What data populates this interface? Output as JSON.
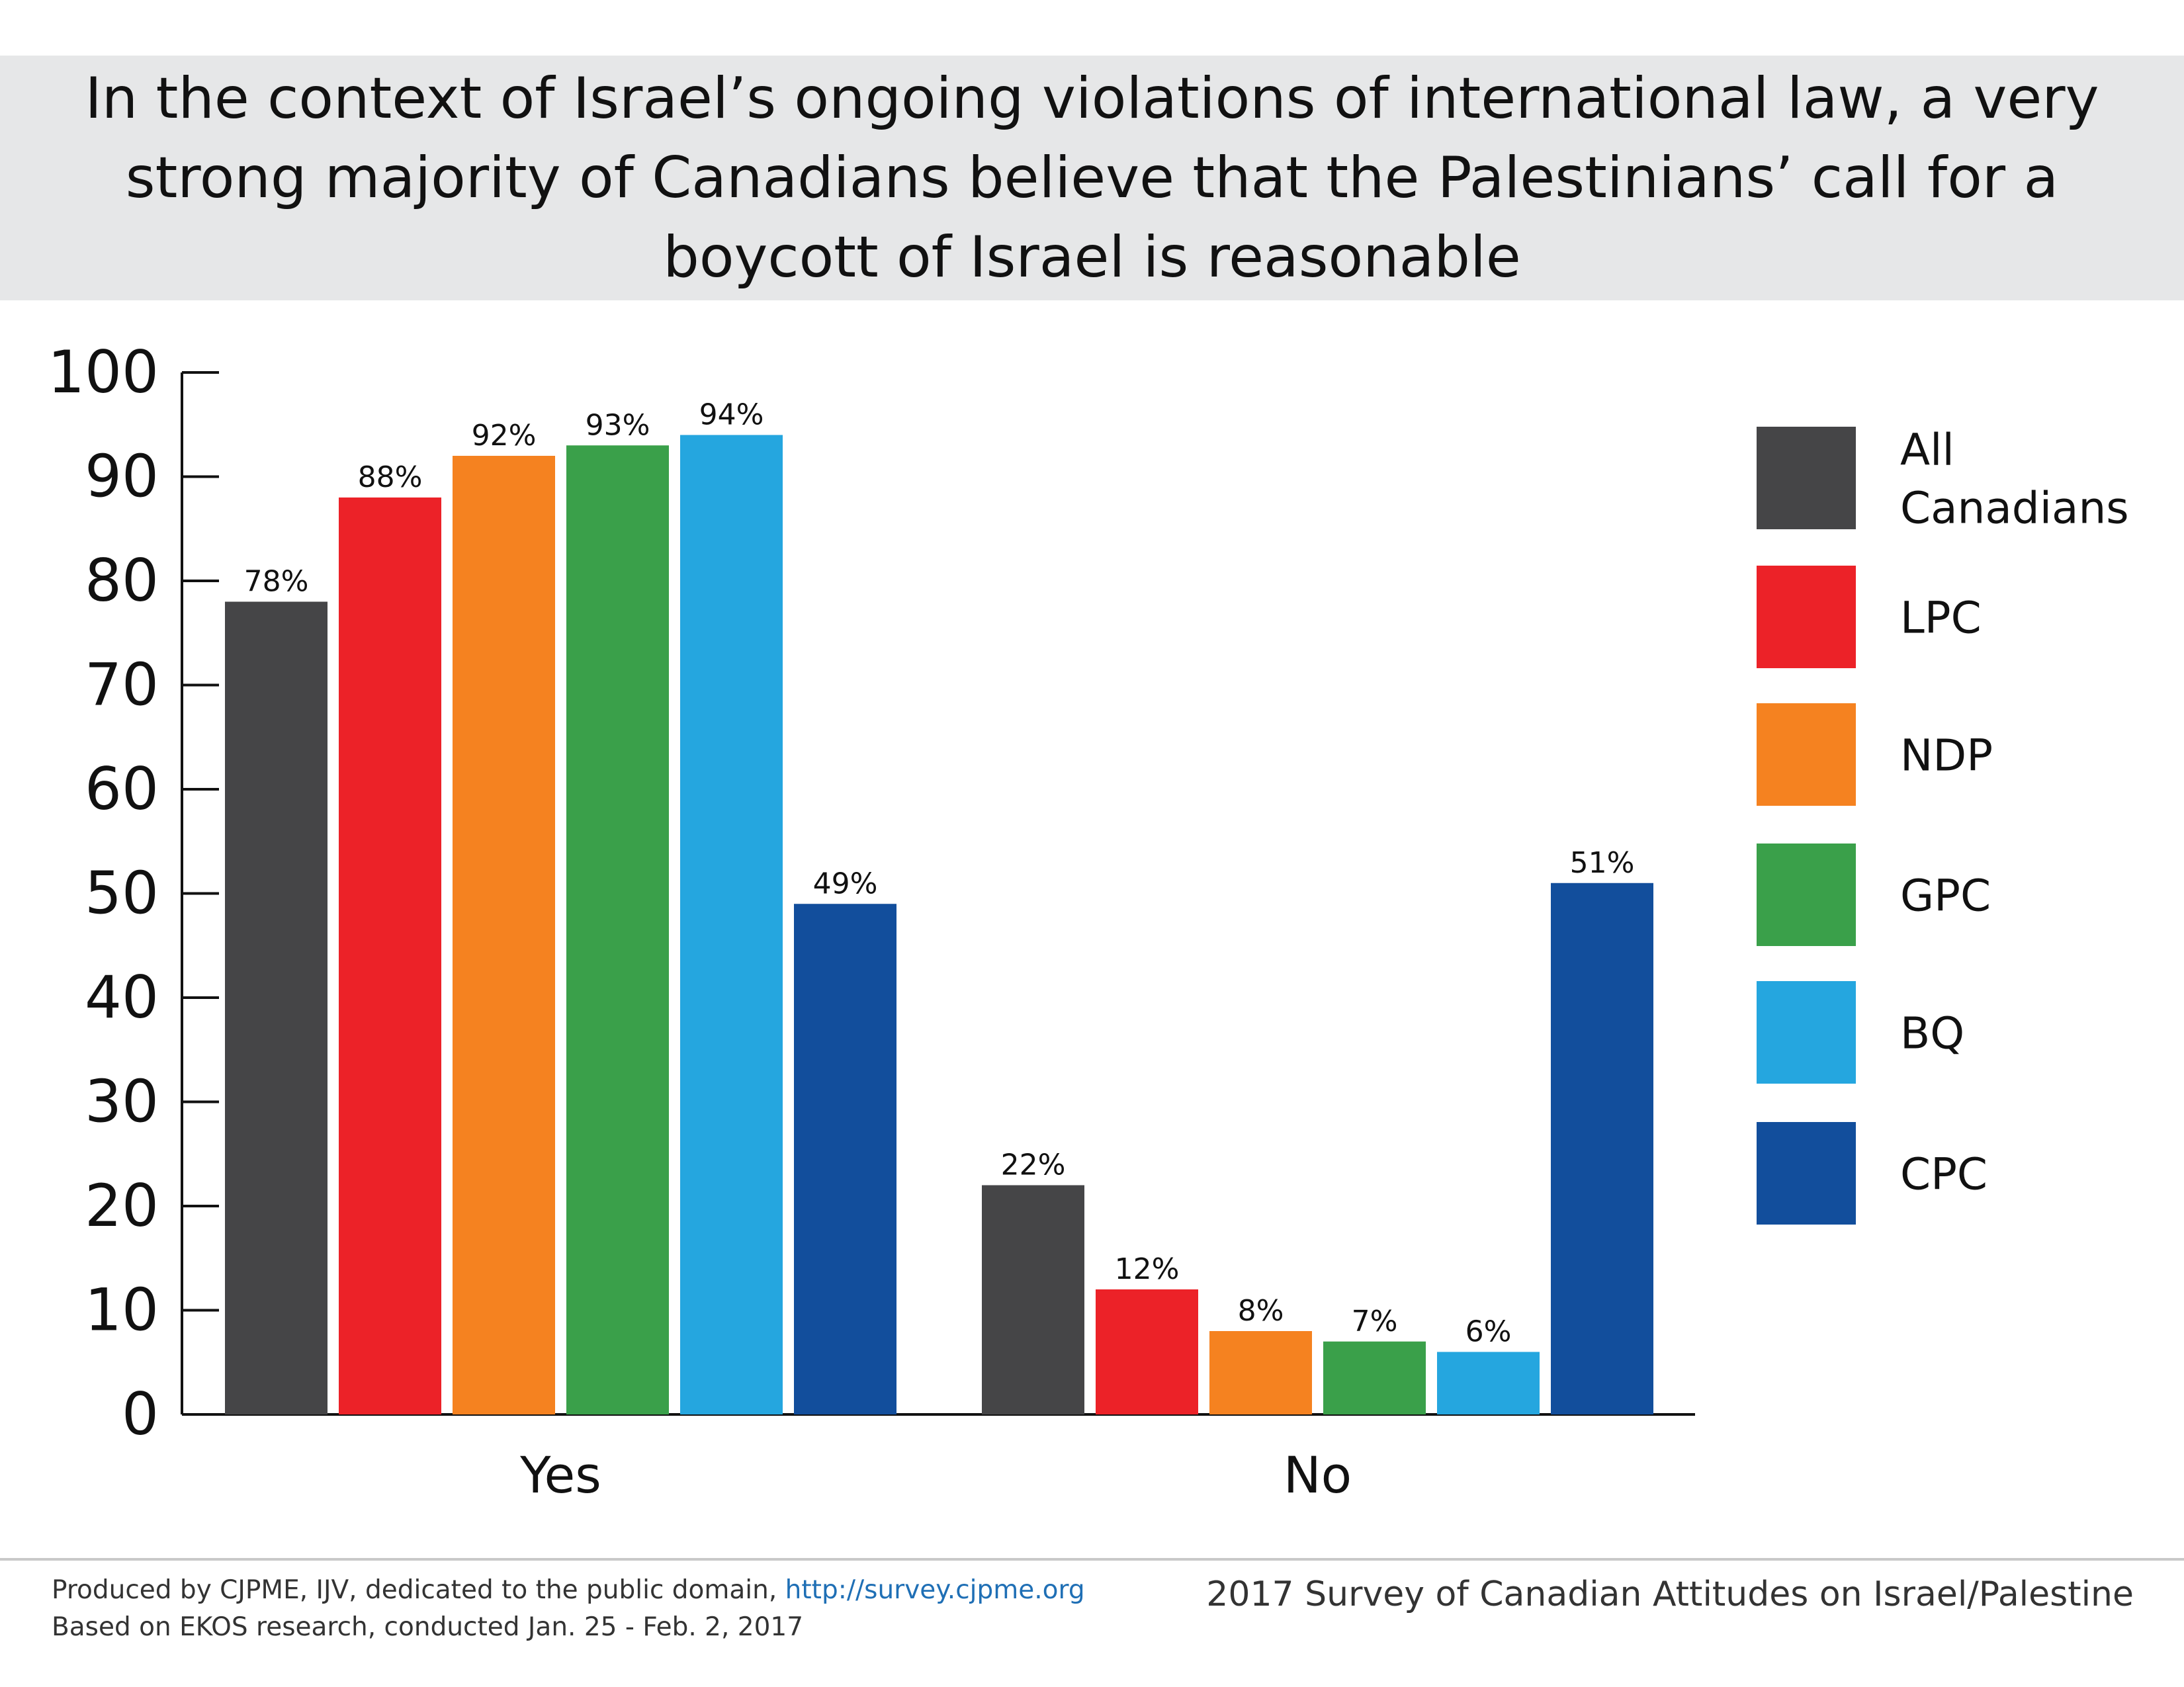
{
  "title": "In the context of Israel’s ongoing violations of international law, a very strong majority of Canadians believe that the Palestinians’ call for a boycott of Israel is reasonable",
  "chart_data": {
    "type": "bar",
    "categories": [
      "Yes",
      "No"
    ],
    "ylim": [
      0,
      100
    ],
    "yticks": [
      0,
      10,
      20,
      30,
      40,
      50,
      60,
      70,
      80,
      90,
      100
    ],
    "grid": false,
    "legend_position": "right",
    "series": [
      {
        "name": "All Canadians",
        "legend_lines": [
          "All",
          "Canadians"
        ],
        "color": "#454547",
        "values": [
          78,
          22
        ],
        "labels": [
          "78%",
          "22%"
        ]
      },
      {
        "name": "LPC",
        "legend_lines": [
          "LPC"
        ],
        "color": "#ec2228",
        "values": [
          88,
          12
        ],
        "labels": [
          "88%",
          "12%"
        ]
      },
      {
        "name": "NDP",
        "legend_lines": [
          "NDP"
        ],
        "color": "#f58220",
        "values": [
          92,
          8
        ],
        "labels": [
          "92%",
          "8%"
        ]
      },
      {
        "name": "GPC",
        "legend_lines": [
          "GPC"
        ],
        "color": "#3aa04a",
        "values": [
          93,
          7
        ],
        "labels": [
          "93%",
          "7%"
        ]
      },
      {
        "name": "BQ",
        "legend_lines": [
          "BQ"
        ],
        "color": "#25a6df",
        "values": [
          94,
          6
        ],
        "labels": [
          "94%",
          "6%"
        ]
      },
      {
        "name": "CPC",
        "legend_lines": [
          "CPC"
        ],
        "color": "#124e9c",
        "values": [
          49,
          51
        ],
        "labels": [
          "49%",
          "51%"
        ]
      }
    ]
  },
  "footer": {
    "credit": "Produced by CJPME, IJV, dedicated to the public domain,",
    "link": "http://survey.cjpme.org",
    "research": "Based on EKOS research, conducted Jan. 25 - Feb. 2, 2017",
    "survey": "2017 Survey of Canadian Attitudes on Israel/Palestine"
  }
}
